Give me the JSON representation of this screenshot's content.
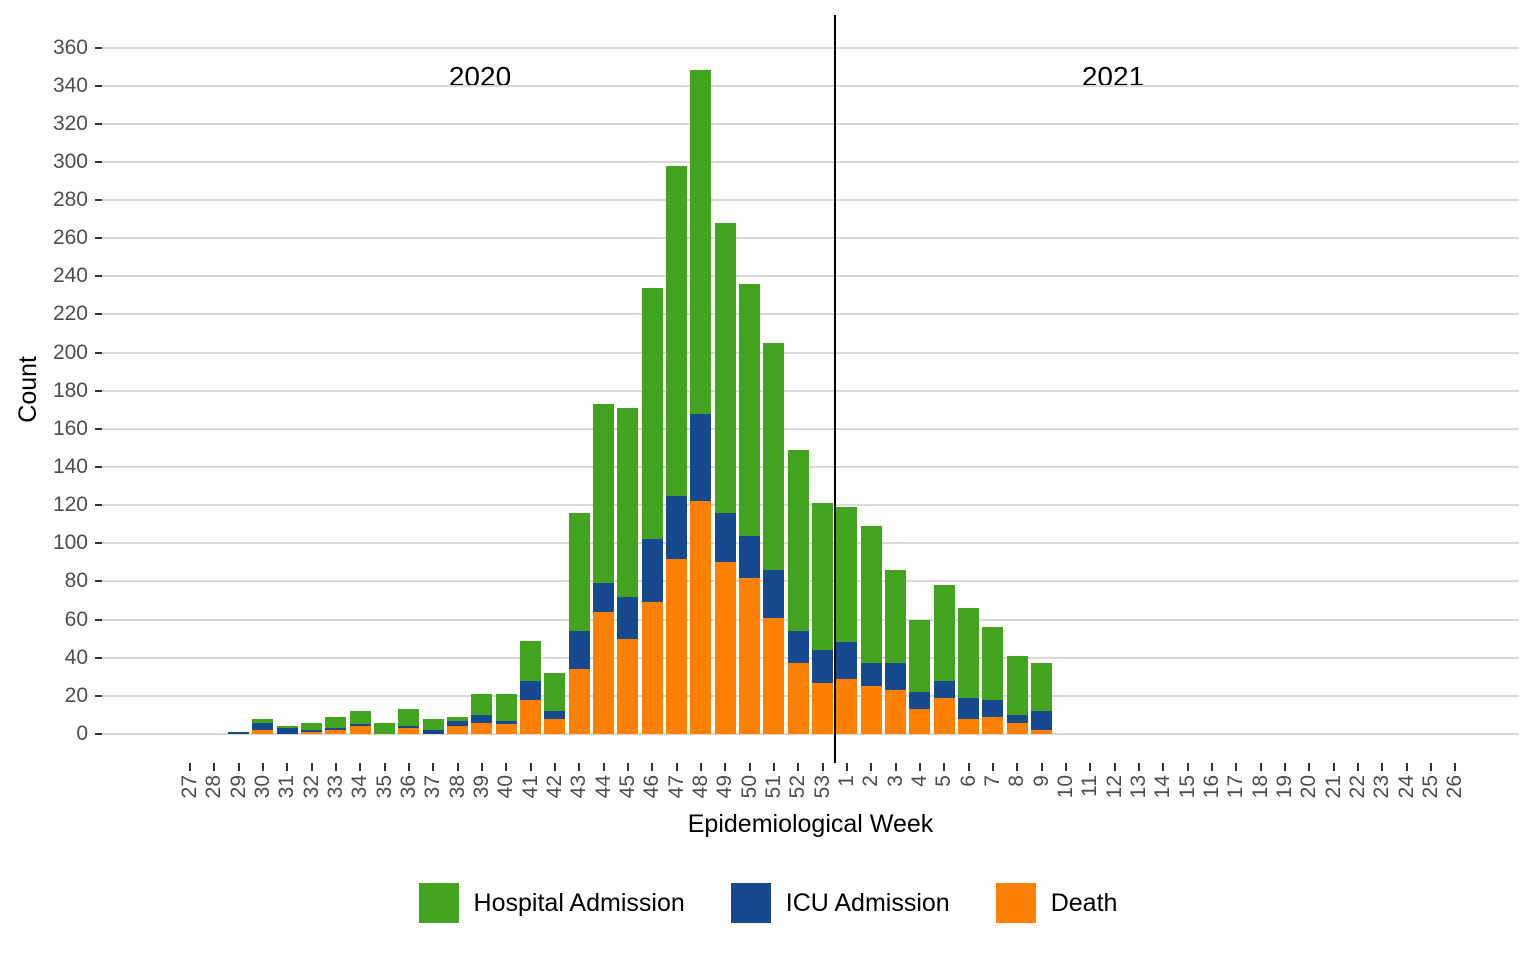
{
  "chart_data": {
    "type": "bar",
    "stacked": true,
    "title": "",
    "xlabel": "Epidemiological Week",
    "ylabel": "Count",
    "ylim": [
      0,
      360
    ],
    "ytick_step": 20,
    "grid": true,
    "legend_position": "bottom",
    "background_color": "#FFFFFF",
    "grid_color": "#D9D9D9",
    "axis_text_color": "#4D4D4D",
    "axis_title_color": "#000000",
    "divider_color": "#000000",
    "annotations": [
      {
        "text": "2020"
      },
      {
        "text": "2021"
      }
    ],
    "year_divider_after_index": 26,
    "categories": [
      "27",
      "28",
      "29",
      "30",
      "31",
      "32",
      "33",
      "34",
      "35",
      "36",
      "37",
      "38",
      "39",
      "40",
      "41",
      "42",
      "43",
      "44",
      "45",
      "46",
      "47",
      "48",
      "49",
      "50",
      "51",
      "52",
      "53",
      "1",
      "2",
      "3",
      "4",
      "5",
      "6",
      "7",
      "8",
      "9",
      "10",
      "11",
      "12",
      "13",
      "14",
      "15",
      "16",
      "17",
      "18",
      "19",
      "20",
      "21",
      "22",
      "23",
      "24",
      "25",
      "26"
    ],
    "series": [
      {
        "name": "Death",
        "color": "#FF8000",
        "values": [
          0,
          0,
          0,
          2,
          0,
          1,
          2,
          4,
          0,
          3,
          0,
          4,
          6,
          5,
          18,
          8,
          34,
          64,
          50,
          69,
          92,
          122,
          90,
          82,
          61,
          37,
          27,
          29,
          25,
          23,
          13,
          19,
          8,
          9,
          6,
          2,
          0,
          0,
          0,
          0,
          0,
          0,
          0,
          0,
          0,
          0,
          0,
          0,
          0,
          0,
          0,
          0,
          0
        ]
      },
      {
        "name": "ICU Admission",
        "color": "#17498E",
        "values": [
          0,
          0,
          1,
          4,
          3,
          1,
          1,
          1,
          0,
          1,
          2,
          3,
          4,
          2,
          10,
          4,
          20,
          15,
          22,
          33,
          33,
          46,
          26,
          22,
          25,
          17,
          17,
          19,
          12,
          14,
          9,
          9,
          11,
          9,
          4,
          10,
          0,
          0,
          0,
          0,
          0,
          0,
          0,
          0,
          0,
          0,
          0,
          0,
          0,
          0,
          0,
          0,
          0
        ]
      },
      {
        "name": "Hospital Admission",
        "color": "#45A41F",
        "values": [
          0,
          0,
          0,
          2,
          1,
          4,
          6,
          7,
          6,
          9,
          6,
          2,
          11,
          14,
          21,
          20,
          62,
          94,
          99,
          132,
          173,
          180,
          152,
          132,
          119,
          95,
          77,
          71,
          72,
          49,
          38,
          50,
          47,
          38,
          31,
          25,
          0,
          0,
          0,
          0,
          0,
          0,
          0,
          0,
          0,
          0,
          0,
          0,
          0,
          0,
          0,
          0,
          0
        ]
      }
    ],
    "legend": [
      {
        "label": "Hospital Admission",
        "color": "#45A41F"
      },
      {
        "label": "ICU Admission",
        "color": "#17498E"
      },
      {
        "label": "Death",
        "color": "#FF8000"
      }
    ]
  }
}
